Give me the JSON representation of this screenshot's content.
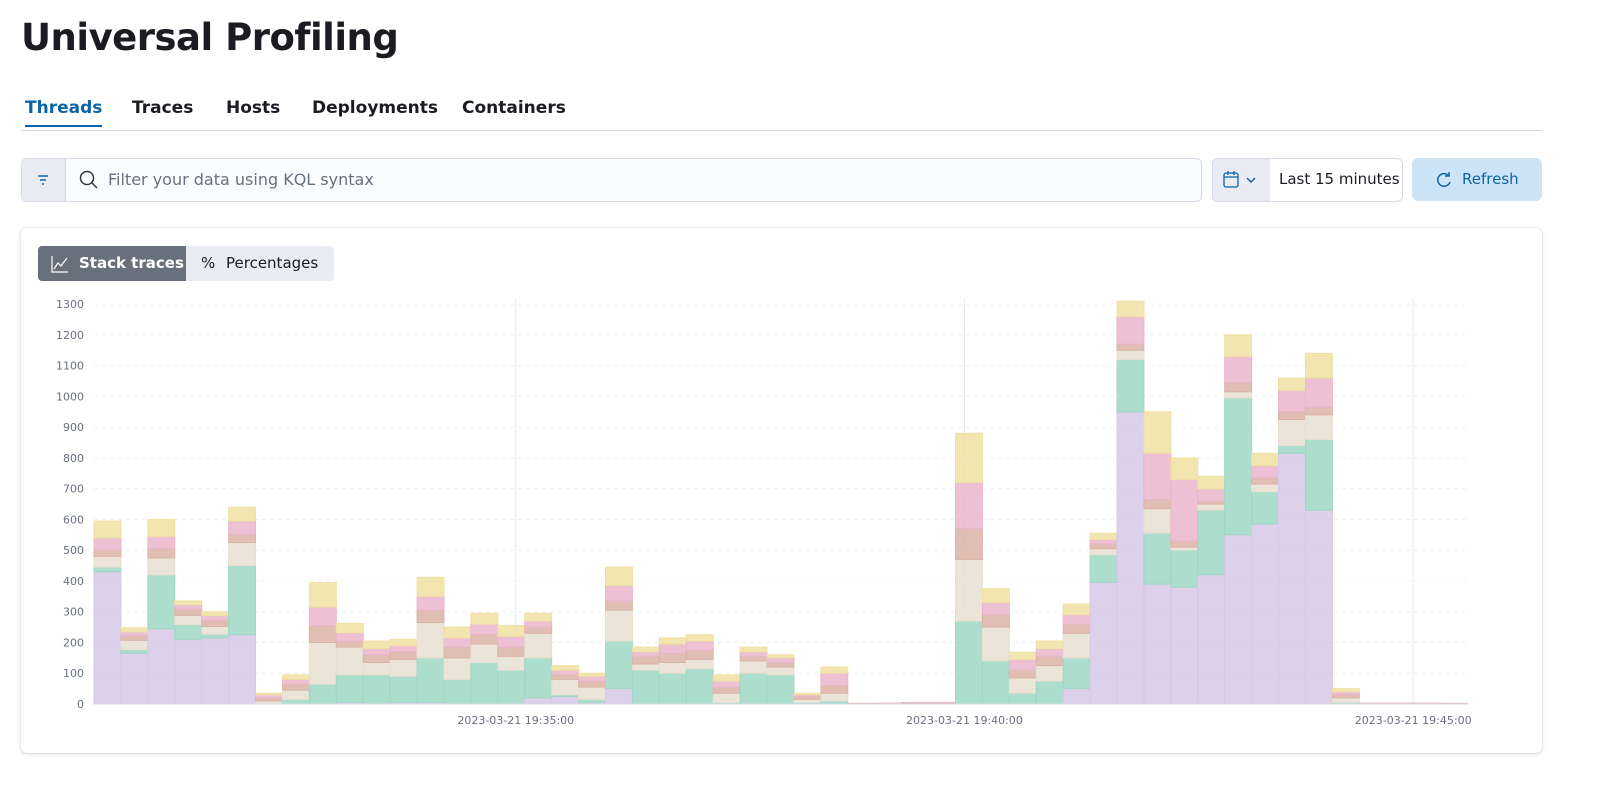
{
  "header": {
    "title": "Universal Profiling"
  },
  "tabs": [
    "Threads",
    "Traces",
    "Hosts",
    "Deployments",
    "Containers"
  ],
  "search": {
    "placeholder": "Filter your data using KQL syntax"
  },
  "date_picker": {
    "label": "Last 15 minutes"
  },
  "refresh": {
    "label": "Refresh"
  },
  "toggles": [
    {
      "label": "Stack traces"
    },
    {
      "icon": "%",
      "label": "Percentages"
    }
  ],
  "chart_data": {
    "type": "bar",
    "stacked": true,
    "grid": true,
    "x": [
      "2023-03-21 19:30:18",
      "2023-03-21 19:30:36",
      "2023-03-21 19:30:54",
      "2023-03-21 19:31:12",
      "2023-03-21 19:31:30",
      "2023-03-21 19:31:48",
      "2023-03-21 19:32:06",
      "2023-03-21 19:32:24",
      "2023-03-21 19:32:42",
      "2023-03-21 19:33:00",
      "2023-03-21 19:33:18",
      "2023-03-21 19:33:36",
      "2023-03-21 19:33:54",
      "2023-03-21 19:34:12",
      "2023-03-21 19:34:30",
      "2023-03-21 19:34:48",
      "2023-03-21 19:35:06",
      "2023-03-21 19:35:24",
      "2023-03-21 19:35:42",
      "2023-03-21 19:36:00",
      "2023-03-21 19:36:18",
      "2023-03-21 19:36:36",
      "2023-03-21 19:36:54",
      "2023-03-21 19:37:12",
      "2023-03-21 19:37:30",
      "2023-03-21 19:37:48",
      "2023-03-21 19:38:06",
      "2023-03-21 19:38:24",
      "2023-03-21 19:38:42",
      "2023-03-21 19:39:00",
      "2023-03-21 19:39:18",
      "2023-03-21 19:39:36",
      "2023-03-21 19:39:54",
      "2023-03-21 19:40:12",
      "2023-03-21 19:40:30",
      "2023-03-21 19:40:48",
      "2023-03-21 19:41:06",
      "2023-03-21 19:41:24",
      "2023-03-21 19:41:42",
      "2023-03-21 19:42:00",
      "2023-03-21 19:42:18",
      "2023-03-21 19:42:36",
      "2023-03-21 19:42:54",
      "2023-03-21 19:43:12",
      "2023-03-21 19:43:30",
      "2023-03-21 19:43:48",
      "2023-03-21 19:44:06",
      "2023-03-21 19:44:24",
      "2023-03-21 19:44:42",
      "2023-03-21 19:45:00",
      "2023-03-21 19:45:18"
    ],
    "xlim": [
      "2023-03-21 19:30:18",
      "2023-03-21 19:45:36"
    ],
    "xticks": [
      "2023-03-21 19:35:00",
      "2023-03-21 19:40:00",
      "2023-03-21 19:45:00"
    ],
    "ylim": [
      0,
      1320
    ],
    "yticks": [
      0,
      100,
      200,
      300,
      400,
      500,
      600,
      700,
      800,
      900,
      1000,
      1100,
      1200,
      1300
    ],
    "series": [
      {
        "color": "#d6c8e7",
        "values": [
          430,
          165,
          245,
          210,
          215,
          225,
          0,
          0,
          0,
          5,
          0,
          5,
          5,
          0,
          0,
          0,
          20,
          25,
          5,
          50,
          0,
          0,
          0,
          0,
          0,
          0,
          0,
          0,
          0,
          0,
          0,
          0,
          0,
          0,
          0,
          0,
          50,
          395,
          950,
          390,
          380,
          420,
          550,
          585,
          815,
          630,
          0,
          0,
          0,
          0,
          0
        ]
      },
      {
        "color": "#9fd8c4",
        "values": [
          15,
          12,
          175,
          48,
          12,
          225,
          0,
          15,
          65,
          90,
          95,
          85,
          145,
          80,
          135,
          110,
          130,
          5,
          10,
          155,
          110,
          100,
          115,
          5,
          100,
          95,
          5,
          10,
          0,
          0,
          0,
          0,
          270,
          140,
          35,
          75,
          100,
          90,
          170,
          165,
          120,
          210,
          445,
          105,
          25,
          230,
          5,
          0,
          0,
          0,
          0
        ]
      },
      {
        "color": "#e8dfd1",
        "values": [
          35,
          30,
          55,
          30,
          25,
          75,
          10,
          30,
          135,
          90,
          40,
          55,
          115,
          70,
          60,
          45,
          80,
          50,
          40,
          100,
          20,
          35,
          30,
          30,
          40,
          25,
          10,
          25,
          1,
          1,
          2,
          2,
          200,
          110,
          50,
          50,
          80,
          20,
          30,
          80,
          10,
          20,
          20,
          25,
          85,
          80,
          15,
          1,
          1,
          1,
          1
        ]
      },
      {
        "color": "#dcb3a6",
        "values": [
          20,
          15,
          30,
          20,
          20,
          25,
          10,
          20,
          55,
          20,
          25,
          25,
          40,
          35,
          30,
          30,
          20,
          15,
          20,
          30,
          25,
          30,
          30,
          20,
          15,
          15,
          10,
          25,
          1,
          1,
          2,
          2,
          100,
          40,
          25,
          30,
          30,
          15,
          20,
          30,
          20,
          10,
          30,
          20,
          25,
          25,
          10,
          1,
          1,
          1,
          1
        ]
      },
      {
        "color": "#eab6cb",
        "values": [
          40,
          12,
          40,
          15,
          15,
          45,
          10,
          15,
          60,
          27,
          20,
          20,
          45,
          30,
          35,
          35,
          20,
          15,
          15,
          50,
          15,
          30,
          30,
          20,
          15,
          15,
          5,
          40,
          0,
          1,
          1,
          1,
          150,
          40,
          35,
          25,
          30,
          15,
          90,
          150,
          200,
          40,
          85,
          40,
          70,
          95,
          10,
          1,
          1,
          1,
          0
        ]
      },
      {
        "color": "#f0e0a2",
        "values": [
          55,
          14,
          55,
          12,
          13,
          45,
          5,
          15,
          80,
          30,
          25,
          20,
          62,
          35,
          35,
          35,
          25,
          15,
          10,
          60,
          15,
          20,
          20,
          20,
          15,
          10,
          5,
          20,
          0,
          0,
          0,
          0,
          160,
          45,
          23,
          25,
          35,
          20,
          50,
          135,
          70,
          40,
          70,
          40,
          40,
          80,
          10,
          0,
          0,
          0,
          0
        ]
      }
    ]
  }
}
